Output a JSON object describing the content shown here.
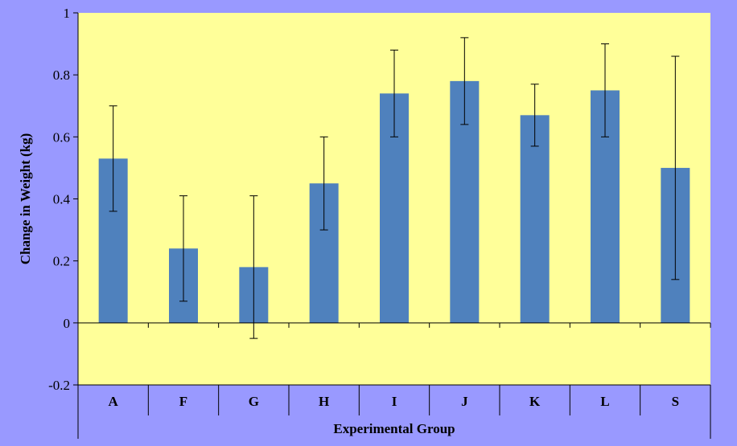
{
  "chart_data": {
    "type": "bar",
    "title": "",
    "xlabel": "Experimental Group",
    "ylabel": "Change in Weight (kg)",
    "categories": [
      "A",
      "F",
      "G",
      "H",
      "I",
      "J",
      "K",
      "L",
      "S"
    ],
    "values": [
      0.53,
      0.24,
      0.18,
      0.45,
      0.74,
      0.78,
      0.67,
      0.75,
      0.5
    ],
    "error_low": [
      0.36,
      0.07,
      -0.05,
      0.3,
      0.6,
      0.64,
      0.57,
      0.6,
      0.14
    ],
    "error_high": [
      0.7,
      0.41,
      0.41,
      0.6,
      0.88,
      0.92,
      0.77,
      0.9,
      0.86
    ],
    "ylim": [
      -0.2,
      1
    ],
    "yticks": [
      -0.2,
      0,
      0.2,
      0.4,
      0.6,
      0.8,
      1
    ],
    "ytick_labels": [
      "-0.2",
      "0",
      "0.2",
      "0.4",
      "0.6",
      "0.8",
      "1"
    ],
    "grid": false,
    "legend": "none",
    "colors": {
      "background": "#9999ff",
      "plot_area": "#ffff99",
      "bar": "#4f81bd",
      "axis": "#000000"
    }
  }
}
